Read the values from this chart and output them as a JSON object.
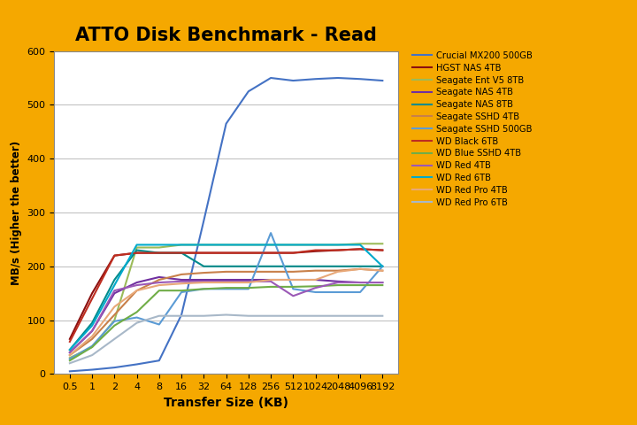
{
  "title": "ATTO Disk Benchmark - Read",
  "xlabel": "Transfer Size (KB)",
  "ylabel": "MB/s (Higher the better)",
  "background_color": "#F5A800",
  "plot_bg_color": "#FFFFFF",
  "title_fontsize": 15,
  "x_labels": [
    "0.5",
    "1",
    "2",
    "4",
    "8",
    "16",
    "32",
    "64",
    "128",
    "256",
    "512",
    "1024",
    "2048",
    "4096",
    "8192"
  ],
  "ylim": [
    0,
    600
  ],
  "yticks": [
    0,
    100,
    200,
    300,
    400,
    500,
    600
  ],
  "series": [
    {
      "label": "Crucial MX200 500GB",
      "color": "#4472C4",
      "values": [
        5,
        8,
        12,
        18,
        25,
        110,
        285,
        465,
        525,
        550,
        545,
        548,
        550,
        548,
        545
      ]
    },
    {
      "label": "HGST NAS 4TB",
      "color": "#8B1010",
      "values": [
        65,
        150,
        220,
        225,
        225,
        225,
        225,
        225,
        225,
        225,
        225,
        228,
        230,
        232,
        230
      ]
    },
    {
      "label": "Seagate Ent V5 8TB",
      "color": "#9BBB59",
      "values": [
        30,
        50,
        100,
        235,
        235,
        240,
        240,
        240,
        240,
        240,
        240,
        240,
        240,
        242,
        242
      ]
    },
    {
      "label": "Seagate NAS 4TB",
      "color": "#7030A0",
      "values": [
        40,
        80,
        150,
        170,
        180,
        175,
        175,
        175,
        175,
        175,
        175,
        175,
        172,
        170,
        170
      ]
    },
    {
      "label": "Seagate NAS 8TB",
      "color": "#008B8B",
      "values": [
        45,
        95,
        175,
        230,
        225,
        225,
        200,
        200,
        200,
        200,
        200,
        200,
        200,
        200,
        200
      ]
    },
    {
      "label": "Seagate SSHD 4TB",
      "color": "#C8804A",
      "values": [
        35,
        65,
        110,
        155,
        175,
        185,
        188,
        190,
        190,
        190,
        190,
        192,
        192,
        195,
        192
      ]
    },
    {
      "label": "Seagate SSHD 500GB",
      "color": "#5B9BD5",
      "values": [
        28,
        52,
        98,
        105,
        92,
        152,
        158,
        158,
        158,
        262,
        158,
        152,
        152,
        152,
        200
      ]
    },
    {
      "label": "WD Black 6TB",
      "color": "#BE2D20",
      "values": [
        60,
        140,
        220,
        225,
        225,
        225,
        225,
        225,
        225,
        225,
        225,
        230,
        230,
        232,
        230
      ]
    },
    {
      "label": "WD Blue SSHD 4TB",
      "color": "#70AD47",
      "values": [
        25,
        50,
        90,
        115,
        155,
        155,
        158,
        160,
        160,
        162,
        162,
        163,
        165,
        165,
        165
      ]
    },
    {
      "label": "WD Red 4TB",
      "color": "#9B59B6",
      "values": [
        40,
        80,
        155,
        165,
        170,
        172,
        172,
        172,
        172,
        172,
        145,
        160,
        170,
        170,
        170
      ]
    },
    {
      "label": "WD Red 6TB",
      "color": "#00AACC",
      "values": [
        45,
        90,
        165,
        240,
        240,
        240,
        240,
        240,
        240,
        240,
        240,
        240,
        240,
        240,
        200
      ]
    },
    {
      "label": "WD Red Pro 4TB",
      "color": "#E8A878",
      "values": [
        35,
        70,
        125,
        155,
        165,
        168,
        170,
        170,
        170,
        175,
        175,
        175,
        190,
        195,
        192
      ]
    },
    {
      "label": "WD Red Pro 6TB",
      "color": "#A8B8C8",
      "values": [
        20,
        35,
        65,
        95,
        108,
        108,
        108,
        110,
        108,
        108,
        108,
        108,
        108,
        108,
        108
      ]
    }
  ]
}
